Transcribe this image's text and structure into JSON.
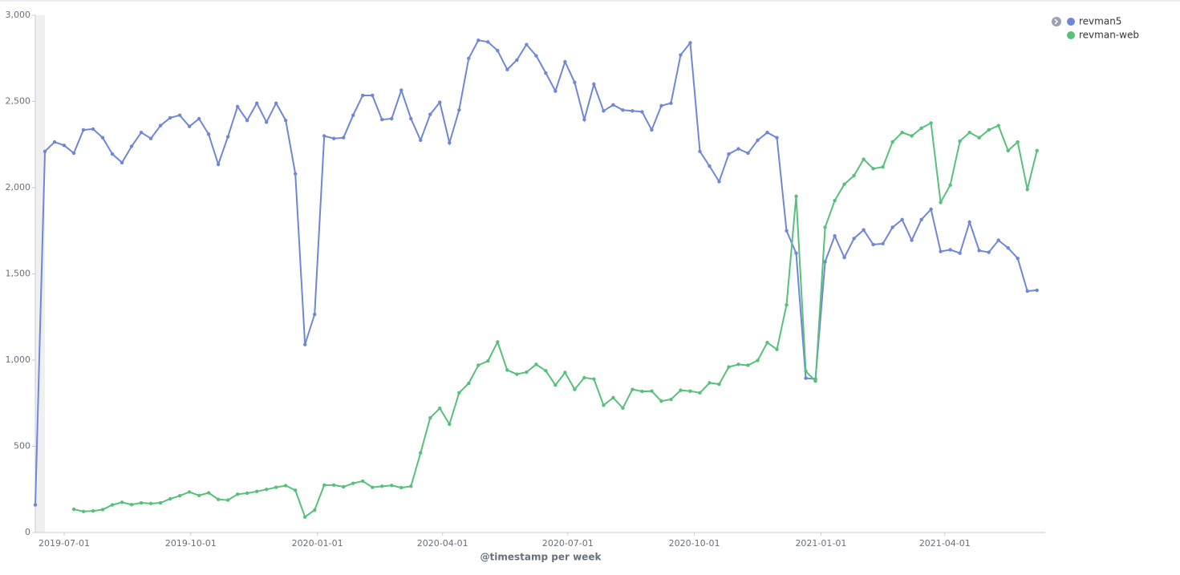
{
  "chart_data": {
    "type": "line",
    "xlabel": "@timestamp per week",
    "x": [
      "2019-06-10",
      "2019-06-17",
      "2019-06-24",
      "2019-07-01",
      "2019-07-08",
      "2019-07-15",
      "2019-07-22",
      "2019-07-29",
      "2019-08-05",
      "2019-08-12",
      "2019-08-19",
      "2019-08-26",
      "2019-09-02",
      "2019-09-09",
      "2019-09-16",
      "2019-09-23",
      "2019-09-30",
      "2019-10-07",
      "2019-10-14",
      "2019-10-21",
      "2019-10-28",
      "2019-11-04",
      "2019-11-11",
      "2019-11-18",
      "2019-11-25",
      "2019-12-02",
      "2019-12-09",
      "2019-12-16",
      "2019-12-23",
      "2019-12-30",
      "2020-01-06",
      "2020-01-13",
      "2020-01-20",
      "2020-01-27",
      "2020-02-03",
      "2020-02-10",
      "2020-02-17",
      "2020-02-24",
      "2020-03-02",
      "2020-03-09",
      "2020-03-16",
      "2020-03-23",
      "2020-03-30",
      "2020-04-06",
      "2020-04-13",
      "2020-04-20",
      "2020-04-27",
      "2020-05-04",
      "2020-05-11",
      "2020-05-18",
      "2020-05-25",
      "2020-06-01",
      "2020-06-08",
      "2020-06-15",
      "2020-06-22",
      "2020-06-29",
      "2020-07-06",
      "2020-07-13",
      "2020-07-20",
      "2020-07-27",
      "2020-08-03",
      "2020-08-10",
      "2020-08-17",
      "2020-08-24",
      "2020-08-31",
      "2020-09-07",
      "2020-09-14",
      "2020-09-21",
      "2020-09-28",
      "2020-10-05",
      "2020-10-12",
      "2020-10-19",
      "2020-10-26",
      "2020-11-02",
      "2020-11-09",
      "2020-11-16",
      "2020-11-23",
      "2020-11-30",
      "2020-12-07",
      "2020-12-14",
      "2020-12-21",
      "2020-12-28",
      "2021-01-04",
      "2021-01-11",
      "2021-01-18",
      "2021-01-25",
      "2021-02-01",
      "2021-02-08",
      "2021-02-15",
      "2021-02-22",
      "2021-03-01",
      "2021-03-08",
      "2021-03-15",
      "2021-03-22",
      "2021-03-29",
      "2021-04-05",
      "2021-04-12",
      "2021-04-19",
      "2021-04-26",
      "2021-05-03",
      "2021-05-10",
      "2021-05-17",
      "2021-05-24",
      "2021-05-31",
      "2021-06-07"
    ],
    "series": [
      {
        "name": "revman5",
        "color": "#6f87d8",
        "values": [
          160,
          2210,
          2265,
          2245,
          2200,
          2335,
          2340,
          2290,
          2195,
          2145,
          2240,
          2320,
          2285,
          2360,
          2405,
          2420,
          2355,
          2400,
          2310,
          2135,
          2295,
          2470,
          2390,
          2490,
          2380,
          2490,
          2390,
          2080,
          1090,
          1265,
          2300,
          2285,
          2290,
          2420,
          2535,
          2535,
          2395,
          2400,
          2565,
          2400,
          2275,
          2425,
          2495,
          2260,
          2450,
          2750,
          2855,
          2845,
          2795,
          2685,
          2740,
          2830,
          2765,
          2665,
          2560,
          2730,
          2610,
          2395,
          2600,
          2445,
          2480,
          2450,
          2445,
          2440,
          2335,
          2475,
          2490,
          2770,
          2840,
          2210,
          2125,
          2035,
          2195,
          2225,
          2200,
          2275,
          2320,
          2290,
          1750,
          1620,
          895,
          890,
          1570,
          1720,
          1595,
          1705,
          1755,
          1670,
          1675,
          1770,
          1815,
          1695,
          1815,
          1875,
          1630,
          1640,
          1620,
          1800,
          1635,
          1625,
          1695,
          1650,
          1590,
          1400,
          1405
        ]
      },
      {
        "name": "revman-web",
        "color": "#57c17b",
        "values": [
          null,
          null,
          null,
          null,
          135,
          122,
          125,
          133,
          160,
          175,
          162,
          172,
          168,
          172,
          195,
          213,
          235,
          215,
          230,
          192,
          188,
          222,
          228,
          238,
          250,
          262,
          272,
          245,
          90,
          130,
          275,
          275,
          265,
          285,
          298,
          262,
          268,
          273,
          260,
          268,
          462,
          665,
          720,
          628,
          810,
          865,
          970,
          995,
          1105,
          942,
          918,
          930,
          975,
          938,
          855,
          928,
          830,
          898,
          890,
          738,
          782,
          722,
          830,
          818,
          820,
          762,
          772,
          825,
          820,
          810,
          868,
          860,
          960,
          975,
          970,
          998,
          1102,
          1062,
          1320,
          1950,
          935,
          878,
          1770,
          1925,
          2020,
          2070,
          2165,
          2110,
          2120,
          2265,
          2320,
          2300,
          2345,
          2375,
          1915,
          2015,
          2270,
          2320,
          2290,
          2335,
          2360,
          2215,
          2265,
          1990,
          2215
        ]
      }
    ],
    "xlim": [
      "2019-06-10",
      "2021-06-13"
    ],
    "xticks": [
      "2019-07-01",
      "2019-10-01",
      "2020-01-01",
      "2020-04-01",
      "2020-07-01",
      "2020-10-01",
      "2021-01-01",
      "2021-04-01"
    ],
    "ylim": [
      0,
      3000
    ],
    "yticks": [
      0,
      500,
      {
        "value": 1000,
        "label": "1,000"
      },
      {
        "value": 1500,
        "label": "1,500"
      },
      {
        "value": 2000,
        "label": "2,000"
      },
      {
        "value": 2500,
        "label": "2,500"
      },
      {
        "value": 3000,
        "label": "3,000"
      }
    ],
    "legend": "top-right"
  }
}
